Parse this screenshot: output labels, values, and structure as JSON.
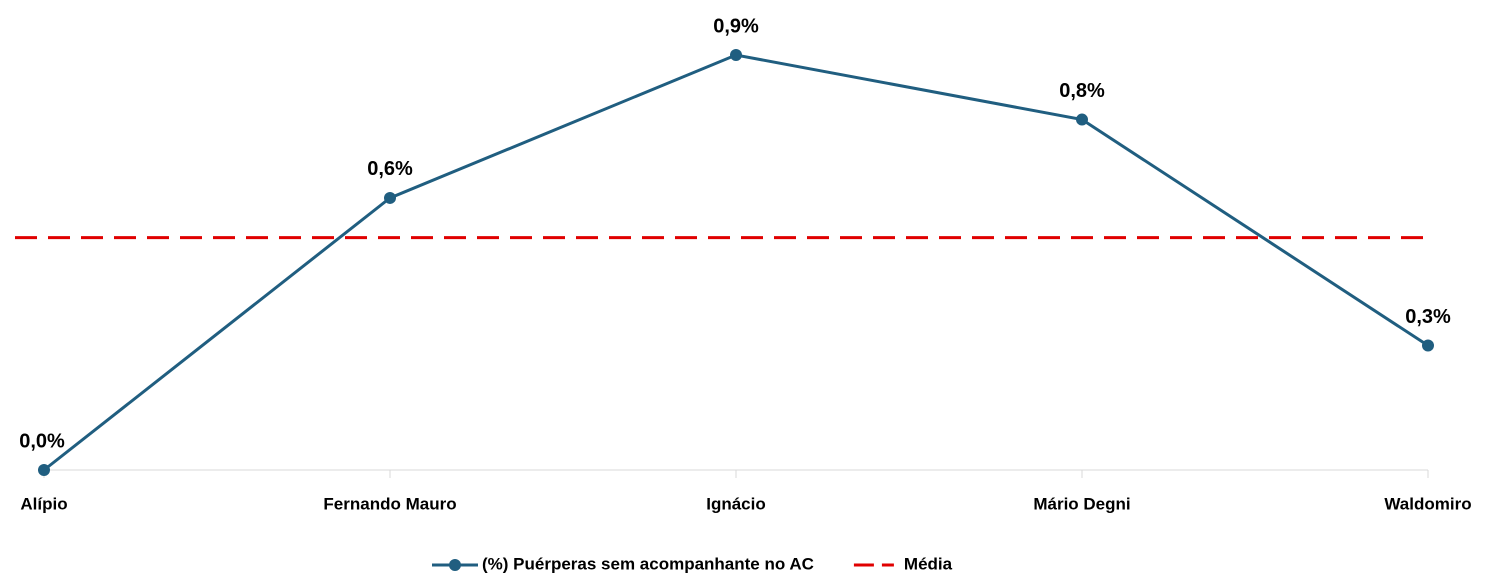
{
  "chart_data": {
    "type": "line",
    "categories": [
      "Alípio",
      "Fernando Mauro",
      "Ignácio",
      "Mário Degni",
      "Waldomiro"
    ],
    "series": [
      {
        "name": "(%) Puérperas sem acompanhante no AC",
        "color": "#205e80",
        "values": [
          0,
          0.59,
          0.9,
          0.76,
          0.27
        ],
        "value_labels": [
          "0,0%",
          "0,6%",
          "0,9%",
          "0,8%",
          "0,3%"
        ]
      },
      {
        "name": "Média",
        "color": "#e00000",
        "dashed": true,
        "values": [
          0.504,
          0.504,
          0.504,
          0.504,
          0.504
        ]
      }
    ],
    "legend": "bottom"
  }
}
